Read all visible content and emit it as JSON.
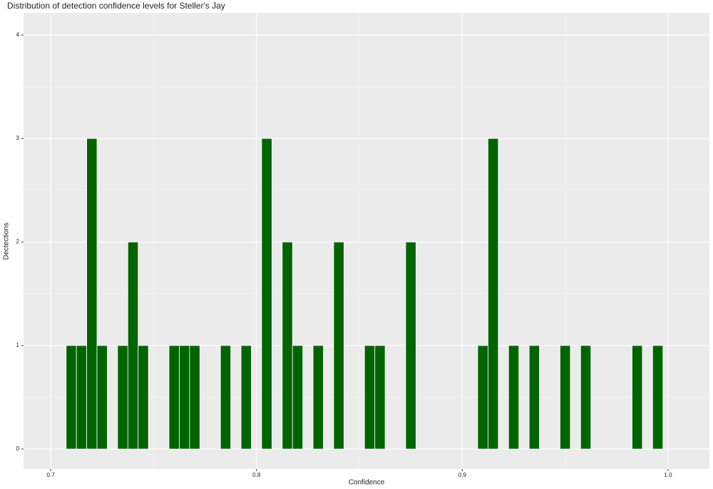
{
  "chart_data": {
    "type": "histogram",
    "title": "Distribution of detection confidence levels for Steller's Jay",
    "x_label": "Confidence",
    "y_label": "Dectections",
    "bins": [
      0.7075,
      0.7125,
      0.7175,
      0.7225,
      0.7275,
      0.7325,
      0.7375,
      0.7425,
      0.7475,
      0.7525,
      0.7575,
      0.7625,
      0.7675,
      0.7725,
      0.7775,
      0.7825,
      0.7875,
      0.7925,
      0.7975,
      0.8025,
      0.8075,
      0.8125,
      0.8175,
      0.8225,
      0.8275,
      0.8325,
      0.8375,
      0.8425,
      0.8475,
      0.8525,
      0.8575,
      0.8625,
      0.8675,
      0.8725,
      0.8775,
      0.8825,
      0.8875,
      0.8925,
      0.8975,
      0.9025,
      0.9075,
      0.9125,
      0.9175,
      0.9225,
      0.9275,
      0.9325,
      0.9375,
      0.9425,
      0.9475,
      0.9525,
      0.9575,
      0.9625,
      0.9675,
      0.9725,
      0.9775,
      0.9825,
      0.9875,
      0.9925,
      0.9975
    ],
    "values": [
      1,
      1,
      3,
      1,
      0,
      1,
      2,
      1,
      0,
      0,
      1,
      1,
      1,
      0,
      0,
      1,
      0,
      1,
      0,
      3,
      0,
      2,
      1,
      0,
      1,
      0,
      2,
      0,
      0,
      1,
      1,
      0,
      0,
      2,
      0,
      0,
      0,
      0,
      0,
      0,
      1,
      3,
      0,
      1,
      0,
      1,
      0,
      0,
      1,
      0,
      1,
      0,
      0,
      0,
      0,
      1,
      0,
      1
    ],
    "color": "#006400",
    "xlim": [
      0.6868,
      1.0201
    ],
    "xticks": [
      0.7,
      0.8,
      0.9,
      {
        "value": 1,
        "label": "1.0"
      }
    ],
    "ylim": [
      -0.193,
      4.214
    ],
    "yticks": [
      0,
      1,
      2,
      3,
      4
    ],
    "grid": true
  }
}
